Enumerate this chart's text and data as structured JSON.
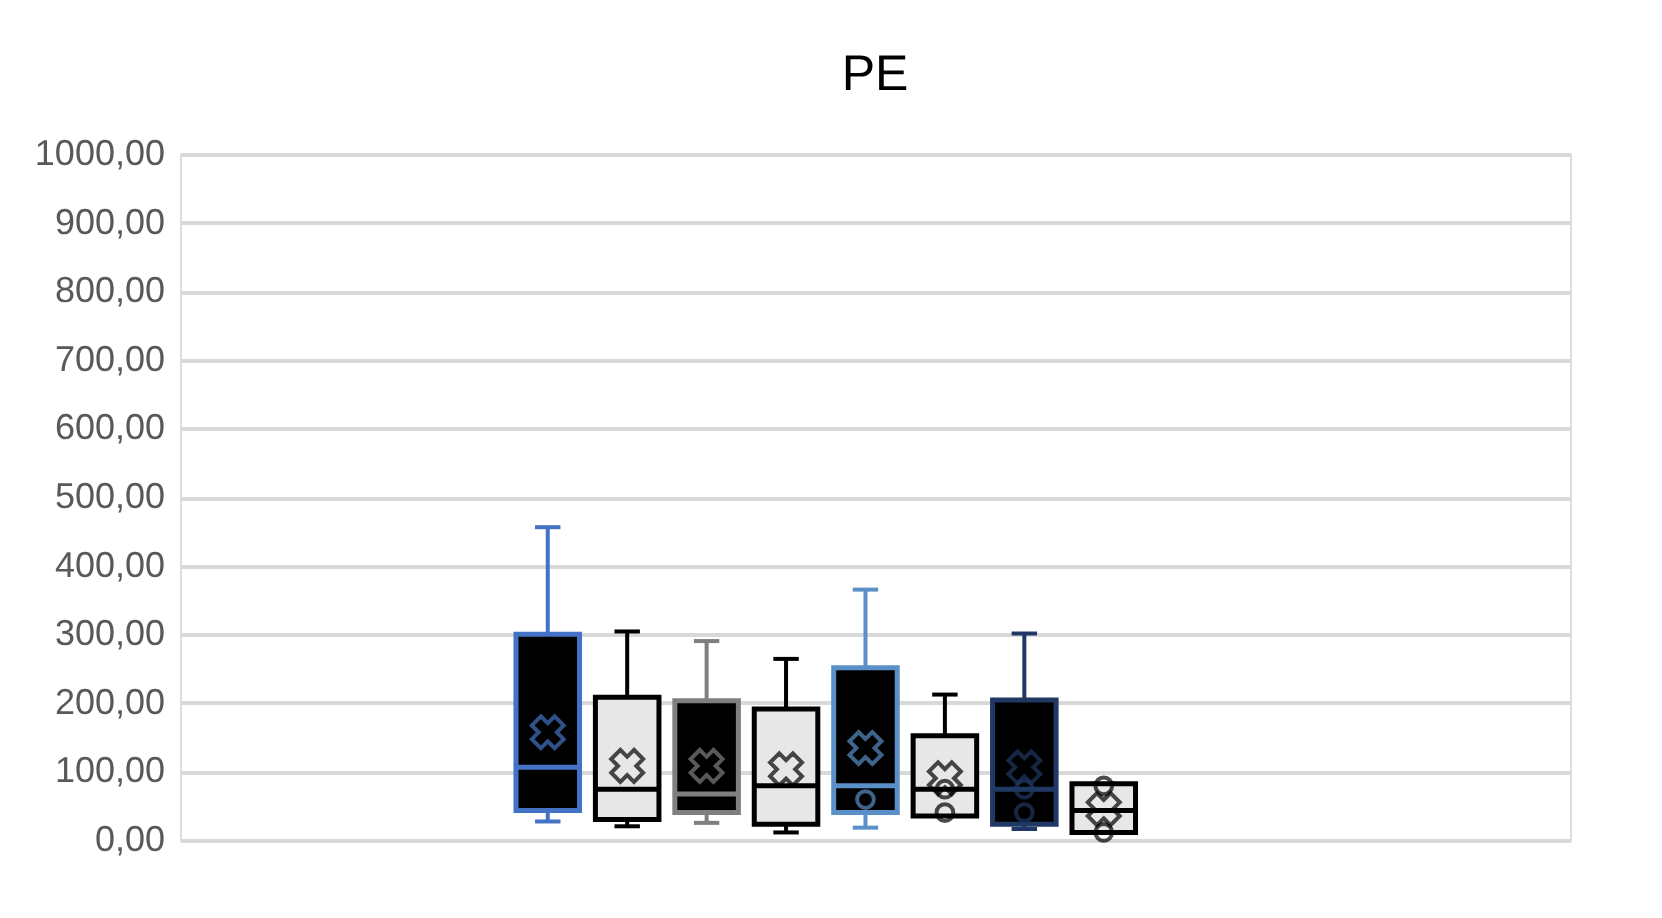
{
  "chart_data": {
    "type": "box",
    "title": "PE",
    "categories": [
      null
    ],
    "ylim": [
      0,
      1000
    ],
    "yticks": [
      {
        "value": 0,
        "label": "0,00"
      },
      {
        "value": 100,
        "label": "100,00"
      },
      {
        "value": 200,
        "label": "200,00"
      },
      {
        "value": 300,
        "label": "300,00"
      },
      {
        "value": 400,
        "label": "400,00"
      },
      {
        "value": 500,
        "label": "500,00"
      },
      {
        "value": 600,
        "label": "600,00"
      },
      {
        "value": 700,
        "label": "700,00"
      },
      {
        "value": 800,
        "label": "800,00"
      },
      {
        "value": 900,
        "label": "900,00"
      },
      {
        "value": 1000,
        "label": "1000,00"
      }
    ],
    "grid": "y",
    "tick_labels": "y",
    "series": [
      {
        "color": "#4472c4",
        "colors": [
          "#000000"
        ],
        "boxes": [
          {
            "low": 27,
            "q1": 43,
            "median": 106,
            "q3": 300,
            "high": 456,
            "mean": 157
          }
        ]
      },
      {
        "color": "#000000",
        "colors": [
          "#e7e7e7"
        ],
        "boxes": [
          {
            "low": 20,
            "q1": 30,
            "median": 74,
            "q3": 208,
            "high": 304,
            "mean": 108
          }
        ]
      },
      {
        "color": "#7f7f7f",
        "colors": [
          "#000000"
        ],
        "boxes": [
          {
            "low": 25,
            "q1": 40,
            "median": 67,
            "q3": 203,
            "high": 290,
            "mean": 108
          }
        ]
      },
      {
        "color": "#000000",
        "colors": [
          "#e7e7e7"
        ],
        "boxes": [
          {
            "low": 11,
            "q1": 23,
            "median": 79,
            "q3": 191,
            "high": 264,
            "mean": 103
          }
        ]
      },
      {
        "color": "#5b8fc7",
        "colors": [
          "#000000"
        ],
        "boxes": [
          {
            "low": 18,
            "q1": 40,
            "median": 79,
            "q3": 251,
            "high": 365,
            "mean": 134,
            "outliers": [
              59
            ]
          }
        ]
      },
      {
        "color": "#000000",
        "colors": [
          "#e7e7e7"
        ],
        "boxes": [
          {
            "low": 35,
            "q1": 35,
            "median": 74,
            "q3": 152,
            "high": 212,
            "mean": 90,
            "outliers": [
              74,
              40
            ]
          }
        ]
      },
      {
        "color": "#203864",
        "colors": [
          "#000000"
        ],
        "boxes": [
          {
            "low": 16,
            "q1": 23,
            "median": 74,
            "q3": 204,
            "high": 301,
            "mean": 106,
            "outliers": [
              74,
              40
            ]
          }
        ]
      },
      {
        "color": "#000000",
        "colors": [
          "#e7e7e7"
        ],
        "boxes": [
          {
            "low": 11,
            "q1": 11,
            "median": 43,
            "q3": 82,
            "high": 82,
            "mean": 45,
            "outliers": [
              79,
              11
            ]
          }
        ]
      }
    ]
  }
}
